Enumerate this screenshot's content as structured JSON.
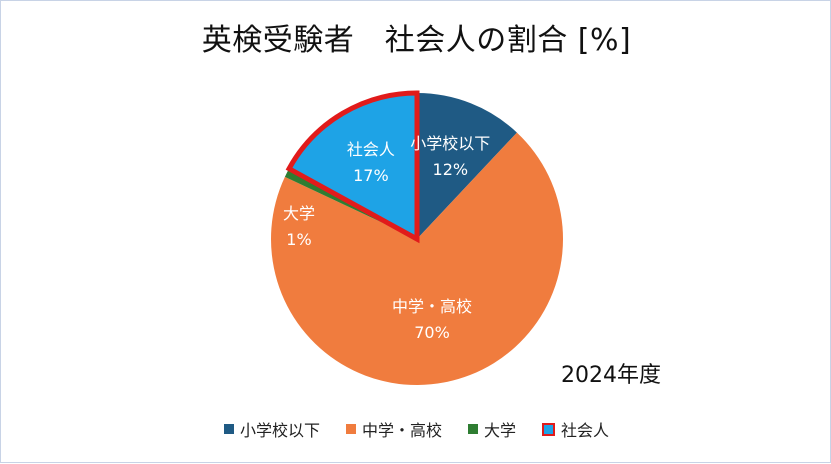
{
  "title": "英検受験者　社会人の割合 [%]",
  "note": "2024年度",
  "chart_data": {
    "type": "pie",
    "title": "英検受験者　社会人の割合 [%]",
    "categories": [
      "小学校以下",
      "中学・高校",
      "大学",
      "社会人"
    ],
    "values": [
      12,
      70,
      1,
      17
    ],
    "value_labels": [
      "12%",
      "70%",
      "1%",
      "17%"
    ],
    "colors": [
      "#1f5a84",
      "#f07c3e",
      "#2e7d32",
      "#1ea3e6"
    ],
    "highlight": "社会人",
    "highlight_outline_color": "#e11b1b",
    "start_angle_deg": 0,
    "direction": "clockwise",
    "legend_position": "bottom",
    "annotation": "2024年度"
  }
}
